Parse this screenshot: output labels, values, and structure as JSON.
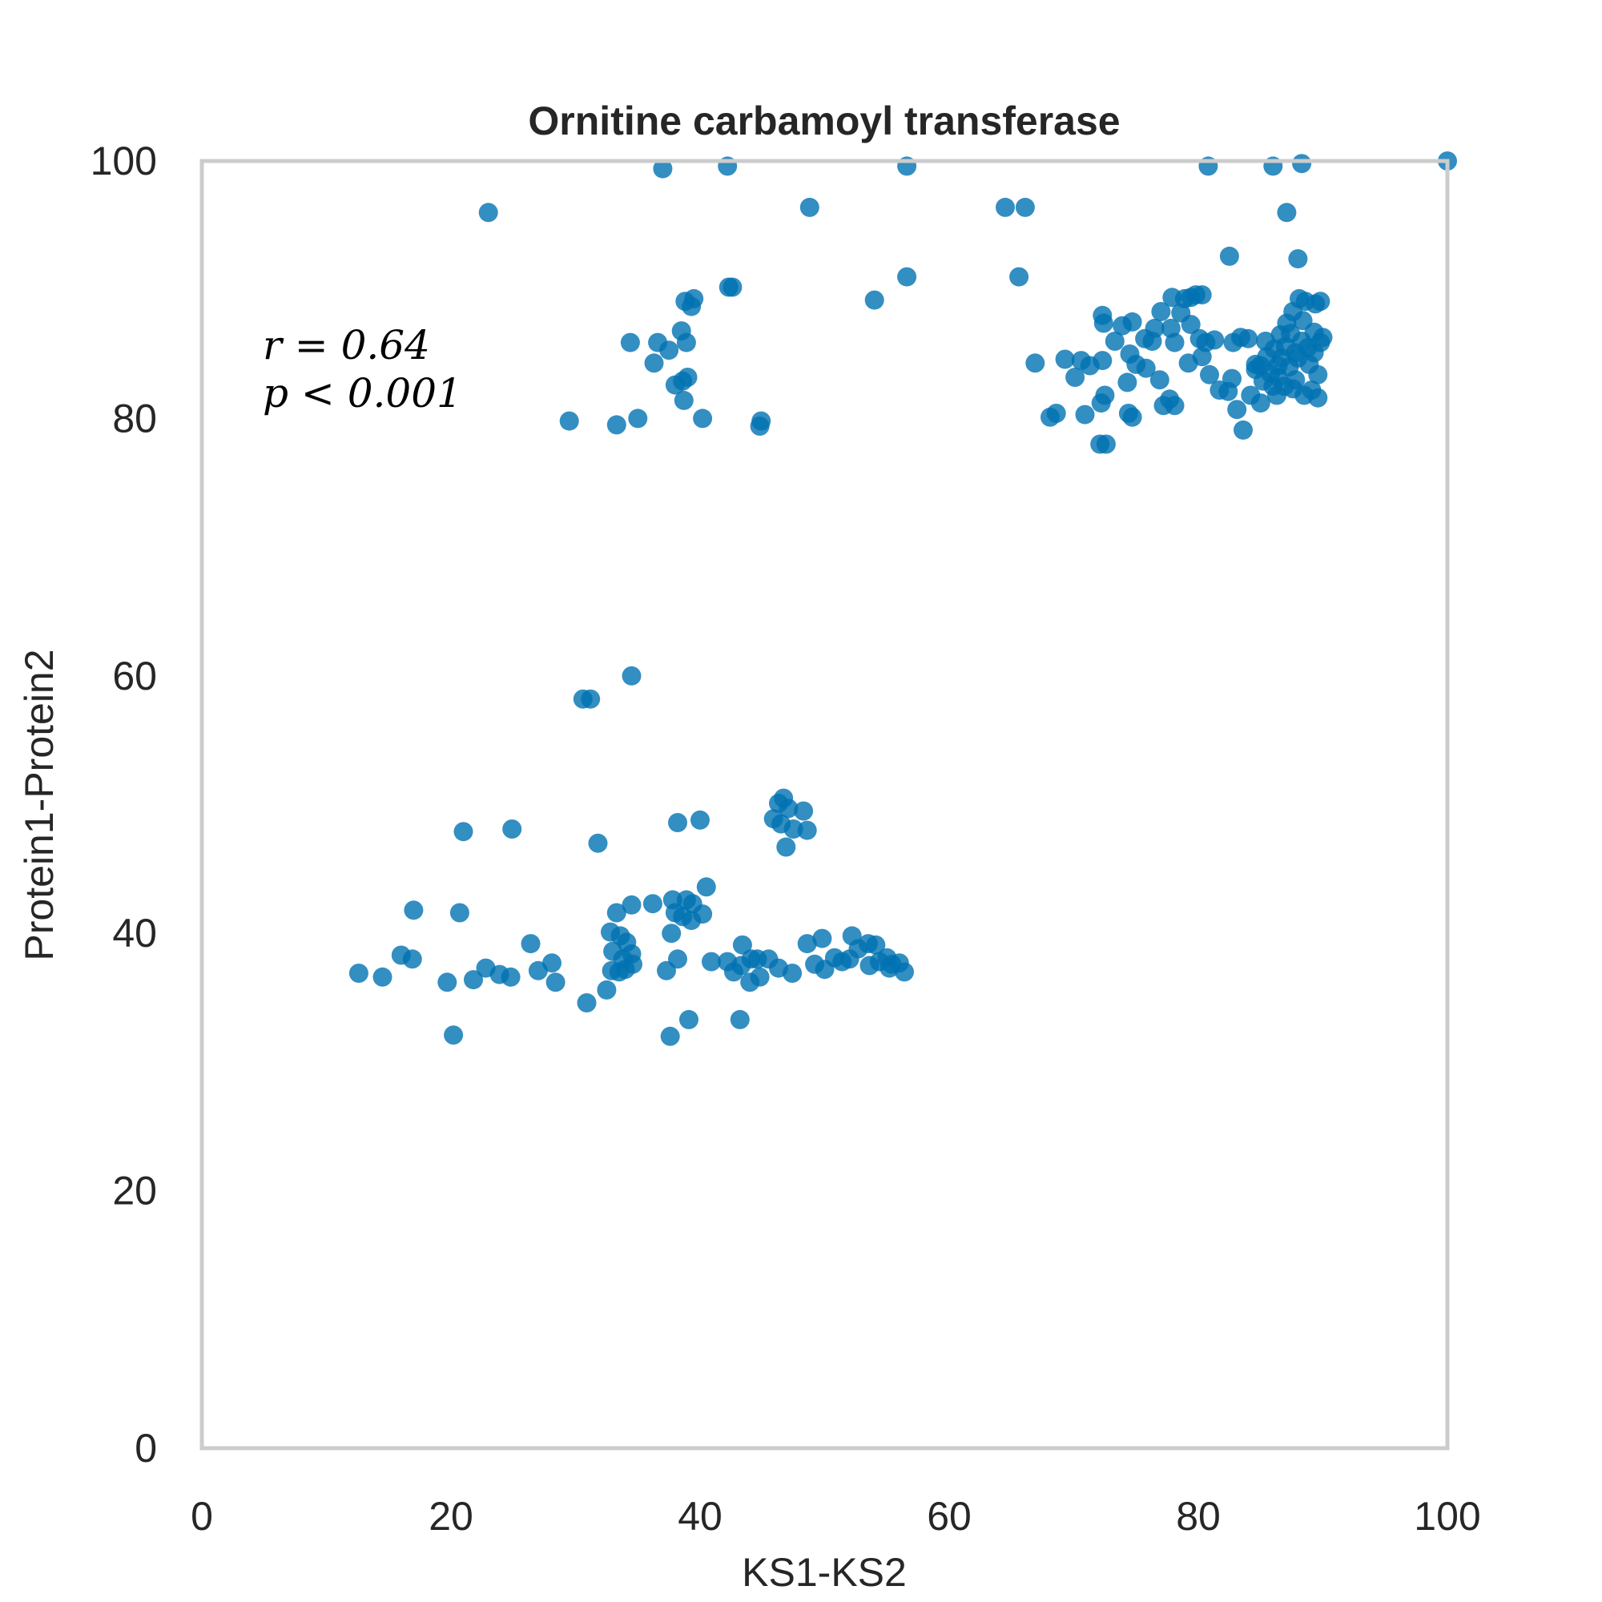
{
  "chart_data": {
    "type": "scatter",
    "title": "Ornitine carbamoyl transferase",
    "xlabel": "KS1-KS2",
    "ylabel": "Protein1-Protein2",
    "xlim": [
      0,
      100
    ],
    "ylim": [
      0,
      100
    ],
    "xticks": [
      0,
      20,
      40,
      60,
      80,
      100
    ],
    "yticks": [
      0,
      20,
      40,
      60,
      80,
      100
    ],
    "xtick_labels": [
      "0",
      "20",
      "40",
      "60",
      "80",
      "100"
    ],
    "ytick_labels": [
      "0",
      "20",
      "40",
      "60",
      "80",
      "100"
    ],
    "grid": false,
    "annotation": {
      "r_text": "r = 0.64",
      "p_text": "p < 0.001"
    },
    "marker_color": "#0072b2",
    "points": [
      [
        23.0,
        96.0
      ],
      [
        37.0,
        99.4
      ],
      [
        42.2,
        99.6
      ],
      [
        48.8,
        96.4
      ],
      [
        56.6,
        99.6
      ],
      [
        64.5,
        96.4
      ],
      [
        66.1,
        96.4
      ],
      [
        80.8,
        99.6
      ],
      [
        86.0,
        99.6
      ],
      [
        87.1,
        96.0
      ],
      [
        88.3,
        99.8
      ],
      [
        100.0,
        100.0
      ],
      [
        56.6,
        91.0
      ],
      [
        54.0,
        89.2
      ],
      [
        65.6,
        91.0
      ],
      [
        82.5,
        92.6
      ],
      [
        88.0,
        92.4
      ],
      [
        42.3,
        90.2
      ],
      [
        42.6,
        90.2
      ],
      [
        38.8,
        89.1
      ],
      [
        39.5,
        89.3
      ],
      [
        39.3,
        88.7
      ],
      [
        34.4,
        85.9
      ],
      [
        36.6,
        85.9
      ],
      [
        37.5,
        85.3
      ],
      [
        38.5,
        86.8
      ],
      [
        38.9,
        85.9
      ],
      [
        36.3,
        84.3
      ],
      [
        38.0,
        82.6
      ],
      [
        38.6,
        82.9
      ],
      [
        39.0,
        83.2
      ],
      [
        38.7,
        81.4
      ],
      [
        40.2,
        80.0
      ],
      [
        35.0,
        80.0
      ],
      [
        33.3,
        79.5
      ],
      [
        29.5,
        79.8
      ],
      [
        44.9,
        79.8
      ],
      [
        44.8,
        79.4
      ],
      [
        66.9,
        84.3
      ],
      [
        69.3,
        84.6
      ],
      [
        70.6,
        84.5
      ],
      [
        71.3,
        84.1
      ],
      [
        72.3,
        84.5
      ],
      [
        70.1,
        83.2
      ],
      [
        68.1,
        80.1
      ],
      [
        68.6,
        80.4
      ],
      [
        70.9,
        80.3
      ],
      [
        72.2,
        81.2
      ],
      [
        72.5,
        81.8
      ],
      [
        72.1,
        78.0
      ],
      [
        72.6,
        78.0
      ],
      [
        72.3,
        88.0
      ],
      [
        72.4,
        87.4
      ],
      [
        73.3,
        86.0
      ],
      [
        73.9,
        87.2
      ],
      [
        74.7,
        87.5
      ],
      [
        75.7,
        86.2
      ],
      [
        76.5,
        87.0
      ],
      [
        77.0,
        88.3
      ],
      [
        77.8,
        87.0
      ],
      [
        78.1,
        85.9
      ],
      [
        76.3,
        86.0
      ],
      [
        74.5,
        85.0
      ],
      [
        75.0,
        84.2
      ],
      [
        74.3,
        82.8
      ],
      [
        75.8,
        83.9
      ],
      [
        76.9,
        83.0
      ],
      [
        77.2,
        81.0
      ],
      [
        77.7,
        81.5
      ],
      [
        78.1,
        81.0
      ],
      [
        74.4,
        80.4
      ],
      [
        74.7,
        80.1
      ],
      [
        77.9,
        89.4
      ],
      [
        78.9,
        89.3
      ],
      [
        79.4,
        89.4
      ],
      [
        79.8,
        89.6
      ],
      [
        80.3,
        89.6
      ],
      [
        78.6,
        88.2
      ],
      [
        79.4,
        87.3
      ],
      [
        80.1,
        86.2
      ],
      [
        80.6,
        85.9
      ],
      [
        81.3,
        86.1
      ],
      [
        79.2,
        84.3
      ],
      [
        80.3,
        84.8
      ],
      [
        80.9,
        83.4
      ],
      [
        81.7,
        82.2
      ],
      [
        82.4,
        82.1
      ],
      [
        83.4,
        86.3
      ],
      [
        84.0,
        86.2
      ],
      [
        82.8,
        85.9
      ],
      [
        82.7,
        83.1
      ],
      [
        83.1,
        80.7
      ],
      [
        83.6,
        79.1
      ],
      [
        84.2,
        81.8
      ],
      [
        85.0,
        81.2
      ],
      [
        84.6,
        84.2
      ],
      [
        85.5,
        84.8
      ],
      [
        86.1,
        85.4
      ],
      [
        86.6,
        86.5
      ],
      [
        87.1,
        87.4
      ],
      [
        87.6,
        88.3
      ],
      [
        88.1,
        89.3
      ],
      [
        88.6,
        89.1
      ],
      [
        89.4,
        88.9
      ],
      [
        89.8,
        89.1
      ],
      [
        86.4,
        83.2
      ],
      [
        86.9,
        82.5
      ],
      [
        87.3,
        84.0
      ],
      [
        87.8,
        85.1
      ],
      [
        88.3,
        86.0
      ],
      [
        88.8,
        85.5
      ],
      [
        89.3,
        86.7
      ],
      [
        89.8,
        85.9
      ],
      [
        90.0,
        86.3
      ],
      [
        89.6,
        83.4
      ],
      [
        89.1,
        82.2
      ],
      [
        88.5,
        81.8
      ],
      [
        87.6,
        82.3
      ],
      [
        86.3,
        81.8
      ],
      [
        85.2,
        82.9
      ],
      [
        84.6,
        83.8
      ],
      [
        89.6,
        81.6
      ],
      [
        88.0,
        84.7
      ],
      [
        87.0,
        85.6
      ],
      [
        86.4,
        84.1
      ],
      [
        85.8,
        83.5
      ],
      [
        85.4,
        86.0
      ],
      [
        88.4,
        87.6
      ],
      [
        87.4,
        86.6
      ],
      [
        86.7,
        84.7
      ],
      [
        88.9,
        84.2
      ],
      [
        89.3,
        85.1
      ],
      [
        87.8,
        83.0
      ],
      [
        86.0,
        82.5
      ],
      [
        85.0,
        84.1
      ],
      [
        34.5,
        60.0
      ],
      [
        30.6,
        58.2
      ],
      [
        31.2,
        58.2
      ],
      [
        46.7,
        50.5
      ],
      [
        46.3,
        50.1
      ],
      [
        47.1,
        49.7
      ],
      [
        48.3,
        49.5
      ],
      [
        45.9,
        48.9
      ],
      [
        46.5,
        48.5
      ],
      [
        47.5,
        48.1
      ],
      [
        48.6,
        48.0
      ],
      [
        46.9,
        46.7
      ],
      [
        38.2,
        48.6
      ],
      [
        40.0,
        48.8
      ],
      [
        21.0,
        47.9
      ],
      [
        24.9,
        48.1
      ],
      [
        31.8,
        47.0
      ],
      [
        40.5,
        43.6
      ],
      [
        36.2,
        42.3
      ],
      [
        37.8,
        42.6
      ],
      [
        38.9,
        42.6
      ],
      [
        39.4,
        42.3
      ],
      [
        38.0,
        41.6
      ],
      [
        38.6,
        41.3
      ],
      [
        39.3,
        41.0
      ],
      [
        40.2,
        41.5
      ],
      [
        37.7,
        40.0
      ],
      [
        34.5,
        42.2
      ],
      [
        33.3,
        41.6
      ],
      [
        17.0,
        41.8
      ],
      [
        20.7,
        41.6
      ],
      [
        16.0,
        38.3
      ],
      [
        16.9,
        38.0
      ],
      [
        12.6,
        36.9
      ],
      [
        14.5,
        36.6
      ],
      [
        19.7,
        36.2
      ],
      [
        21.8,
        36.4
      ],
      [
        22.8,
        37.3
      ],
      [
        23.9,
        36.8
      ],
      [
        24.8,
        36.6
      ],
      [
        26.4,
        39.2
      ],
      [
        27.0,
        37.1
      ],
      [
        28.1,
        37.7
      ],
      [
        28.4,
        36.2
      ],
      [
        30.9,
        34.6
      ],
      [
        32.5,
        35.6
      ],
      [
        32.8,
        40.1
      ],
      [
        33.6,
        39.8
      ],
      [
        34.1,
        39.3
      ],
      [
        34.5,
        38.4
      ],
      [
        33.0,
        38.6
      ],
      [
        32.9,
        37.1
      ],
      [
        33.5,
        37.0
      ],
      [
        34.0,
        37.2
      ],
      [
        34.6,
        37.6
      ],
      [
        33.8,
        38.0
      ],
      [
        37.3,
        37.1
      ],
      [
        38.2,
        38.0
      ],
      [
        20.2,
        32.1
      ],
      [
        37.6,
        32.0
      ],
      [
        39.1,
        33.3
      ],
      [
        43.2,
        33.3
      ],
      [
        40.9,
        37.8
      ],
      [
        42.2,
        37.8
      ],
      [
        42.7,
        37.0
      ],
      [
        43.3,
        37.5
      ],
      [
        43.4,
        39.1
      ],
      [
        44.1,
        38.0
      ],
      [
        44.6,
        38.0
      ],
      [
        44.0,
        36.2
      ],
      [
        44.8,
        36.6
      ],
      [
        45.5,
        38.0
      ],
      [
        46.3,
        37.3
      ],
      [
        47.4,
        36.9
      ],
      [
        48.6,
        39.2
      ],
      [
        49.8,
        39.6
      ],
      [
        49.2,
        37.6
      ],
      [
        50.0,
        37.2
      ],
      [
        50.8,
        38.1
      ],
      [
        51.4,
        37.8
      ],
      [
        52.0,
        38.0
      ],
      [
        52.2,
        39.8
      ],
      [
        52.7,
        38.8
      ],
      [
        53.5,
        39.2
      ],
      [
        54.1,
        39.1
      ],
      [
        53.6,
        37.5
      ],
      [
        54.4,
        37.8
      ],
      [
        55.0,
        38.1
      ],
      [
        55.4,
        37.6
      ],
      [
        55.2,
        37.3
      ],
      [
        56.0,
        37.7
      ],
      [
        56.4,
        37.0
      ]
    ]
  }
}
